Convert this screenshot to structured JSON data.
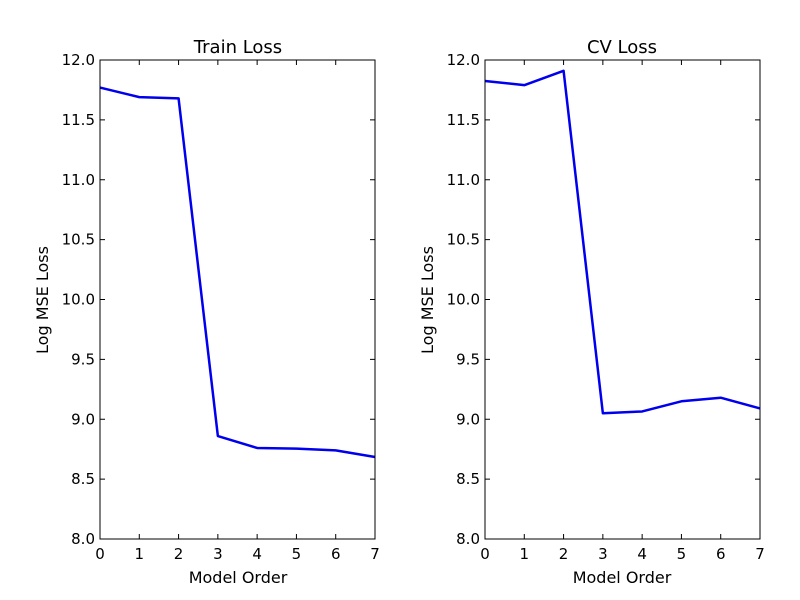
{
  "chart_data": [
    {
      "type": "line",
      "title": "Train Loss",
      "xlabel": "Model Order",
      "ylabel": "Log MSE Loss",
      "xlim": [
        0,
        7
      ],
      "ylim": [
        8.0,
        12.0
      ],
      "x_ticks": [
        "0",
        "1",
        "2",
        "3",
        "4",
        "5",
        "6",
        "7"
      ],
      "y_ticks": [
        "8.0",
        "8.5",
        "9.0",
        "9.5",
        "10.0",
        "10.5",
        "11.0",
        "11.5",
        "12.0"
      ],
      "grid": false,
      "series": [
        {
          "color": "#0000ee",
          "x": [
            0,
            1,
            2,
            3,
            4,
            5,
            6,
            7
          ],
          "values": [
            11.77,
            11.69,
            11.68,
            8.86,
            8.76,
            8.755,
            8.74,
            8.685
          ]
        }
      ]
    },
    {
      "type": "line",
      "title": "CV Loss",
      "xlabel": "Model Order",
      "ylabel": "Log MSE Loss",
      "xlim": [
        0,
        7
      ],
      "ylim": [
        8.0,
        12.0
      ],
      "x_ticks": [
        "0",
        "1",
        "2",
        "3",
        "4",
        "5",
        "6",
        "7"
      ],
      "y_ticks": [
        "8.0",
        "8.5",
        "9.0",
        "9.5",
        "10.0",
        "10.5",
        "11.0",
        "11.5",
        "12.0"
      ],
      "grid": false,
      "series": [
        {
          "color": "#0000ee",
          "x": [
            0,
            1,
            2,
            3,
            4,
            5,
            6,
            7
          ],
          "values": [
            11.825,
            11.79,
            11.91,
            9.05,
            9.065,
            9.15,
            9.18,
            9.09
          ]
        }
      ]
    }
  ]
}
